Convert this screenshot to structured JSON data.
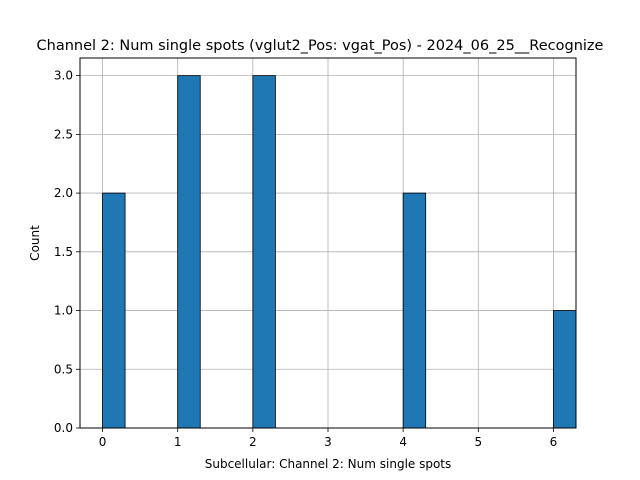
{
  "chart_data": {
    "type": "bar",
    "title": "Channel 2: Num single spots (vglut2_Pos: vgat_Pos) - 2024_06_25__Recognize",
    "xlabel": "Subcellular: Channel 2: Num single spots",
    "ylabel": "Count",
    "xlim": [
      -0.3,
      6.3
    ],
    "ylim": [
      0,
      3.15
    ],
    "x_ticks": [
      0,
      1,
      2,
      3,
      4,
      5,
      6
    ],
    "x_tick_labels": [
      "0",
      "1",
      "2",
      "3",
      "4",
      "5",
      "6"
    ],
    "y_ticks": [
      0,
      0.5,
      1,
      1.5,
      2,
      2.5,
      3
    ],
    "y_tick_labels": [
      "0.0",
      "0.5",
      "1.0",
      "1.5",
      "2.0",
      "2.5",
      "3.0"
    ],
    "grid": true,
    "legend": "none",
    "bin_width": 0.3,
    "bars": [
      {
        "x": 0,
        "value": 2
      },
      {
        "x": 1,
        "value": 3
      },
      {
        "x": 2,
        "value": 3
      },
      {
        "x": 4,
        "value": 2
      },
      {
        "x": 6,
        "value": 1
      }
    ],
    "bar_color": "#1f77b4",
    "bar_edge_color": "#000000"
  }
}
